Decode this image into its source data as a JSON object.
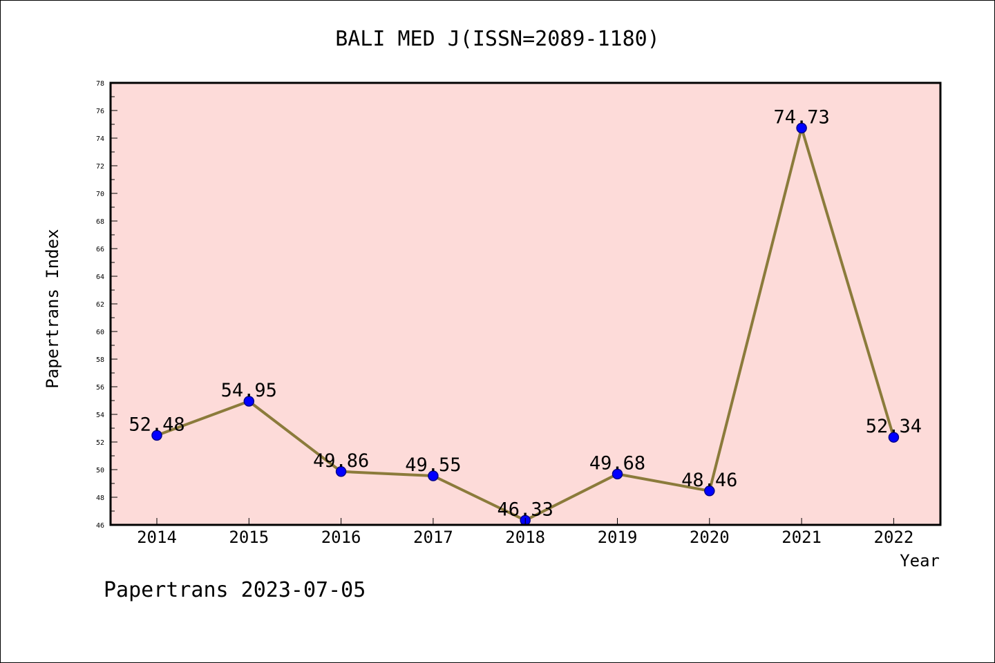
{
  "chart_data": {
    "type": "line",
    "title": "BALI MED J(ISSN=2089-1180)",
    "xlabel": "Year",
    "ylabel": "Papertrans Index",
    "categories": [
      "2014",
      "2015",
      "2016",
      "2017",
      "2018",
      "2019",
      "2020",
      "2021",
      "2022"
    ],
    "series": [
      {
        "values": [
          52.48,
          54.95,
          49.86,
          49.55,
          46.33,
          49.68,
          48.46,
          74.73,
          52.34
        ],
        "labels": [
          "52.48",
          "54.95",
          "49.86",
          "49.55",
          "46.33",
          "49.68",
          "48.46",
          "74.73",
          "52.34"
        ]
      }
    ],
    "ylim": [
      46,
      78
    ],
    "yticks": [
      "46",
      "48",
      "50",
      "52",
      "54",
      "56",
      "58",
      "60",
      "62",
      "64",
      "66",
      "68",
      "70",
      "72",
      "74",
      "76",
      "78"
    ],
    "grid": false,
    "legend": "none",
    "colors": {
      "plot_background": "#fddbd9",
      "line": "#8b7b3b",
      "marker": "#0000ff",
      "marker_edge": "#00008b"
    }
  },
  "footer": {
    "text": "Papertrans 2023-07-05"
  }
}
